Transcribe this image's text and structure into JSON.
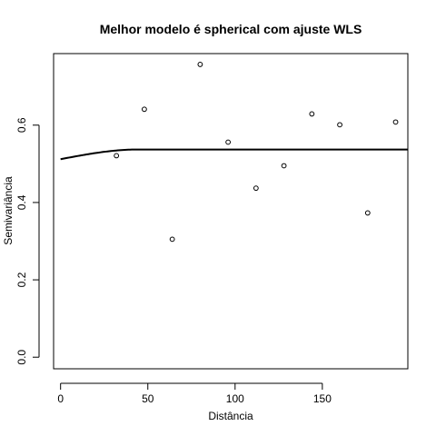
{
  "chart_data": {
    "type": "scatter",
    "title": "Melhor modelo é spherical com ajuste  WLS",
    "xlabel": "Distância",
    "ylabel": "Semivariância",
    "xlim": [
      -4,
      199
    ],
    "ylim": [
      -0.03,
      0.785
    ],
    "xticks": [
      0,
      50,
      100,
      150
    ],
    "xtick_labels": [
      "0",
      "50",
      "100",
      "150"
    ],
    "yticks": [
      0.0,
      0.2,
      0.4,
      0.6
    ],
    "ytick_labels": [
      "0.0",
      "0.2",
      "0.4",
      "0.6"
    ],
    "grid": false,
    "legend": "none",
    "points": [
      {
        "x": 32,
        "y": 0.521
      },
      {
        "x": 48,
        "y": 0.641
      },
      {
        "x": 64,
        "y": 0.305
      },
      {
        "x": 80,
        "y": 0.757
      },
      {
        "x": 96,
        "y": 0.556
      },
      {
        "x": 112,
        "y": 0.437
      },
      {
        "x": 128,
        "y": 0.495
      },
      {
        "x": 144,
        "y": 0.629
      },
      {
        "x": 160,
        "y": 0.601
      },
      {
        "x": 176,
        "y": 0.373
      },
      {
        "x": 192,
        "y": 0.608
      }
    ],
    "model_curve": {
      "type": "spherical",
      "nugget": 0.512,
      "sill": 0.537,
      "range": 44,
      "x_max": 199
    },
    "colors": {
      "points": "#000000",
      "curve": "#000000",
      "frame": "#000000"
    }
  }
}
